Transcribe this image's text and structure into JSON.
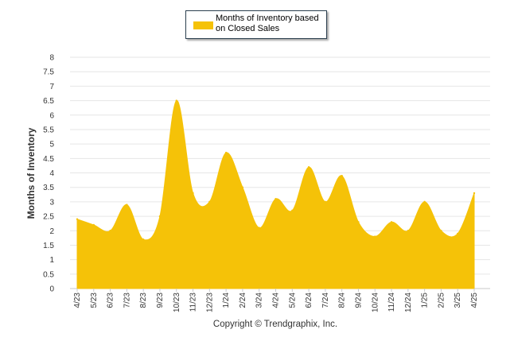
{
  "legend": {
    "label_line1": "Months of Inventory based",
    "label_line2": "on Closed Sales"
  },
  "copyright": "Copyright © Trendgraphix, Inc.",
  "colors": {
    "series": "#F5C208",
    "grid": "#e6e6e6",
    "axis_text": "#333333"
  },
  "chart_data": {
    "type": "area",
    "title": "",
    "xlabel": "",
    "ylabel": "Months of Inventory",
    "ylim": [
      0,
      8
    ],
    "ytick_step": 0.5,
    "yticks": [
      "0",
      "0.5",
      "1",
      "1.5",
      "2",
      "2.5",
      "3",
      "3.5",
      "4",
      "4.5",
      "5",
      "5.5",
      "6",
      "6.5",
      "7",
      "7.5",
      "8"
    ],
    "grid": true,
    "legend_position": "top-center",
    "categories": [
      "4/23",
      "5/23",
      "6/23",
      "7/23",
      "8/23",
      "9/23",
      "10/23",
      "11/23",
      "12/23",
      "1/24",
      "2/24",
      "3/24",
      "4/24",
      "5/24",
      "6/24",
      "7/24",
      "8/24",
      "9/24",
      "10/24",
      "11/24",
      "12/24",
      "1/25",
      "2/25",
      "3/25",
      "4/25"
    ],
    "series": [
      {
        "name": "Months of Inventory based on Closed Sales",
        "values": [
          2.4,
          2.2,
          2.0,
          2.9,
          1.7,
          2.5,
          6.5,
          3.3,
          3.0,
          4.7,
          3.5,
          2.1,
          3.1,
          2.7,
          4.2,
          3.0,
          3.9,
          2.3,
          1.8,
          2.3,
          2.0,
          3.0,
          2.0,
          1.9,
          3.3
        ]
      }
    ]
  }
}
